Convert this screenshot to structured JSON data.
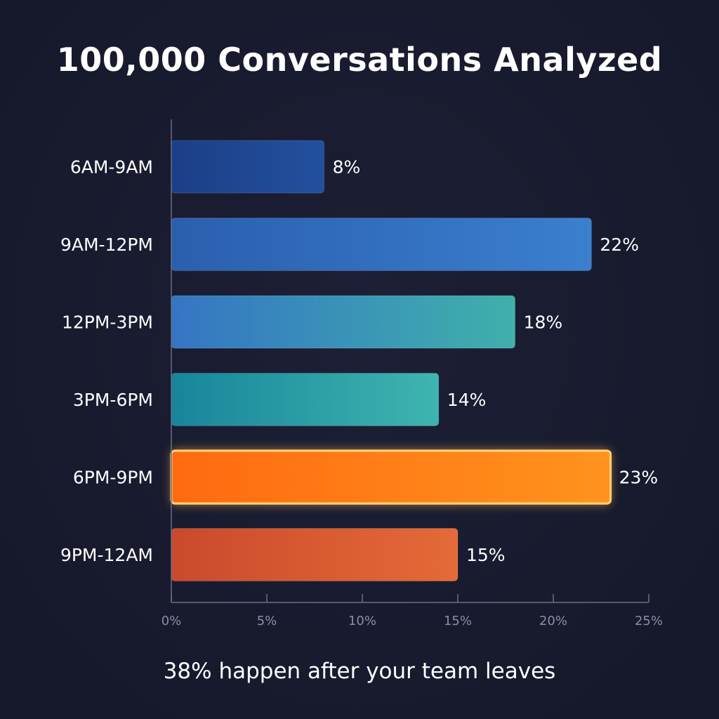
{
  "title": "100,000 Conversations Analyzed",
  "subtitle": "38% happen after your team leaves",
  "chart_data": {
    "type": "bar",
    "orientation": "horizontal",
    "title": "100,000 Conversations Analyzed",
    "xlabel": "",
    "ylabel": "",
    "categories": [
      "6AM-9AM",
      "9AM-12PM",
      "12PM-3PM",
      "3PM-6PM",
      "6PM-9PM",
      "9PM-12AM"
    ],
    "values": [
      8,
      22,
      18,
      14,
      23,
      15
    ],
    "value_labels": [
      "8%",
      "22%",
      "18%",
      "14%",
      "23%",
      "15%"
    ],
    "xlim": [
      0,
      25
    ],
    "x_ticks": [
      0,
      5,
      10,
      15,
      20,
      25
    ],
    "x_tick_labels": [
      "0%",
      "5%",
      "10%",
      "15%",
      "20%",
      "25%"
    ],
    "grid": false,
    "highlight_category": "6PM-9PM",
    "bar_colors": [
      [
        "#1b3f86",
        "#23509f"
      ],
      [
        "#2a5fae",
        "#3b7fcf"
      ],
      [
        "#3575c4",
        "#3fb0ab"
      ],
      [
        "#17859a",
        "#3fb5b0"
      ],
      [
        "#ff6a10",
        "#ff931e"
      ],
      [
        "#c94a2c",
        "#e56a38"
      ]
    ],
    "highlight_glow_color": "#ffb347",
    "axis_color": "#6b6f85",
    "tick_label_color": "#8a8ea6",
    "label_color": "#ffffff"
  }
}
